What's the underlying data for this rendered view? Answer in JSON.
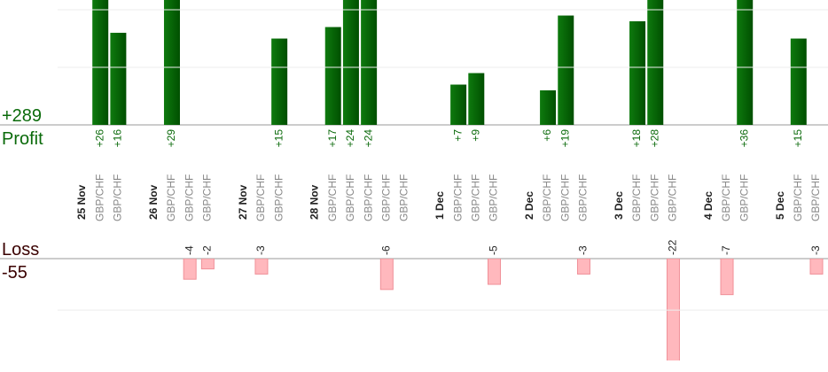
{
  "chart_data": {
    "type": "bar",
    "total_profit": {
      "value": 289,
      "label": "+289"
    },
    "profit_title": "Profit",
    "loss_title": "Loss",
    "total_loss": -55,
    "ylim": [
      0,
      21.7
    ],
    "yticks": [
      10,
      20
    ],
    "y2lim": [
      -19.8,
      0
    ],
    "y2ticks": [
      -10
    ],
    "colors": {
      "profit": "#0a6a0a",
      "loss": "#ffb8bd"
    },
    "days": [
      {
        "date": "25 Nov",
        "trades": [
          {
            "pair": "GBP/CHF",
            "value": 26,
            "value_label": "+26"
          },
          {
            "pair": "GBP/CHF",
            "value": 16,
            "value_label": "+16"
          }
        ]
      },
      {
        "date": "26 Nov",
        "trades": [
          {
            "pair": "GBP/CHF",
            "value": 29,
            "value_label": "+29"
          },
          {
            "pair": "GBP/CHF",
            "value": -4
          },
          {
            "pair": "GBP/CHF",
            "value": -2
          }
        ]
      },
      {
        "date": "27 Nov",
        "trades": [
          {
            "pair": "GBP/CHF",
            "value": -3
          },
          {
            "pair": "GBP/CHF",
            "value": 15,
            "value_label": "+15"
          }
        ]
      },
      {
        "date": "28 Nov",
        "trades": [
          {
            "pair": "GBP/CHF",
            "value": 17,
            "value_label": "+17"
          },
          {
            "pair": "GBP/CHF",
            "value": 24,
            "value_label": "+24"
          },
          {
            "pair": "GBP/CHF",
            "value": 24,
            "value_label": "+24"
          },
          {
            "pair": "GBP/CHF",
            "value": -6
          },
          {
            "pair": "GBP/CHF",
            "value": null
          }
        ]
      },
      {
        "date": "1 Dec",
        "trades": [
          {
            "pair": "GBP/CHF",
            "value": 7,
            "value_label": "+7"
          },
          {
            "pair": "GBP/CHF",
            "value": 9,
            "value_label": "+9"
          },
          {
            "pair": "GBP/CHF",
            "value": -5
          }
        ]
      },
      {
        "date": "2 Dec",
        "trades": [
          {
            "pair": "GBP/CHF",
            "value": 6,
            "value_label": "+6"
          },
          {
            "pair": "GBP/CHF",
            "value": 19,
            "value_label": "+19"
          },
          {
            "pair": "GBP/CHF",
            "value": -3
          }
        ]
      },
      {
        "date": "3 Dec",
        "trades": [
          {
            "pair": "GBP/CHF",
            "value": 18,
            "value_label": "+18"
          },
          {
            "pair": "GBP/CHF",
            "value": 28,
            "value_label": "+28"
          },
          {
            "pair": "GBP/CHF",
            "value": -22
          }
        ]
      },
      {
        "date": "4 Dec",
        "trades": [
          {
            "pair": "GBP/CHF",
            "value": -7
          },
          {
            "pair": "GBP/CHF",
            "value": 36,
            "value_label": "+36"
          }
        ]
      },
      {
        "date": "5 Dec",
        "trades": [
          {
            "pair": "GBP/CHF",
            "value": 15,
            "value_label": "+15"
          },
          {
            "pair": "GBP/CHF",
            "value": -3
          }
        ]
      }
    ]
  }
}
